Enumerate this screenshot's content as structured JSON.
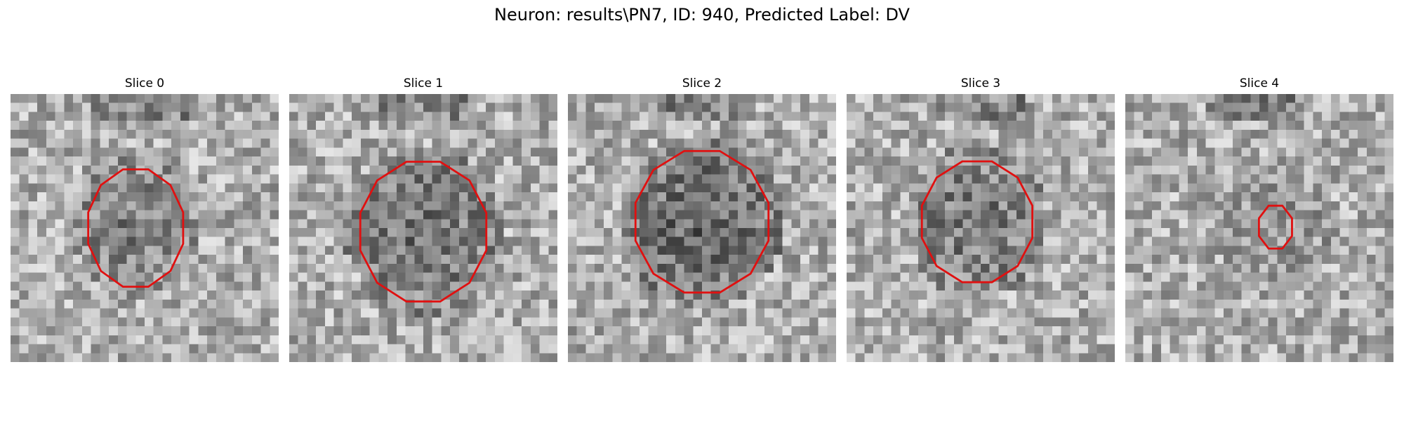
{
  "figure": {
    "title": "Neuron: results\\PN7, ID: 940, Predicted Label: DV",
    "contour_color": "#e01010",
    "panels": [
      {
        "title": "Slice 0",
        "seed": 11,
        "center_darkness": 0.55,
        "bright_top_band": 0.0
      },
      {
        "title": "Slice 1",
        "seed": 23,
        "center_darkness": 0.7,
        "bright_top_band": 0.0
      },
      {
        "title": "Slice 2",
        "seed": 37,
        "center_darkness": 0.85,
        "bright_top_band": 0.0
      },
      {
        "title": "Slice 3",
        "seed": 41,
        "center_darkness": 0.65,
        "bright_top_band": 0.0
      },
      {
        "title": "Slice 4",
        "seed": 59,
        "center_darkness": 0.3,
        "bright_top_band": 0.0
      }
    ]
  }
}
